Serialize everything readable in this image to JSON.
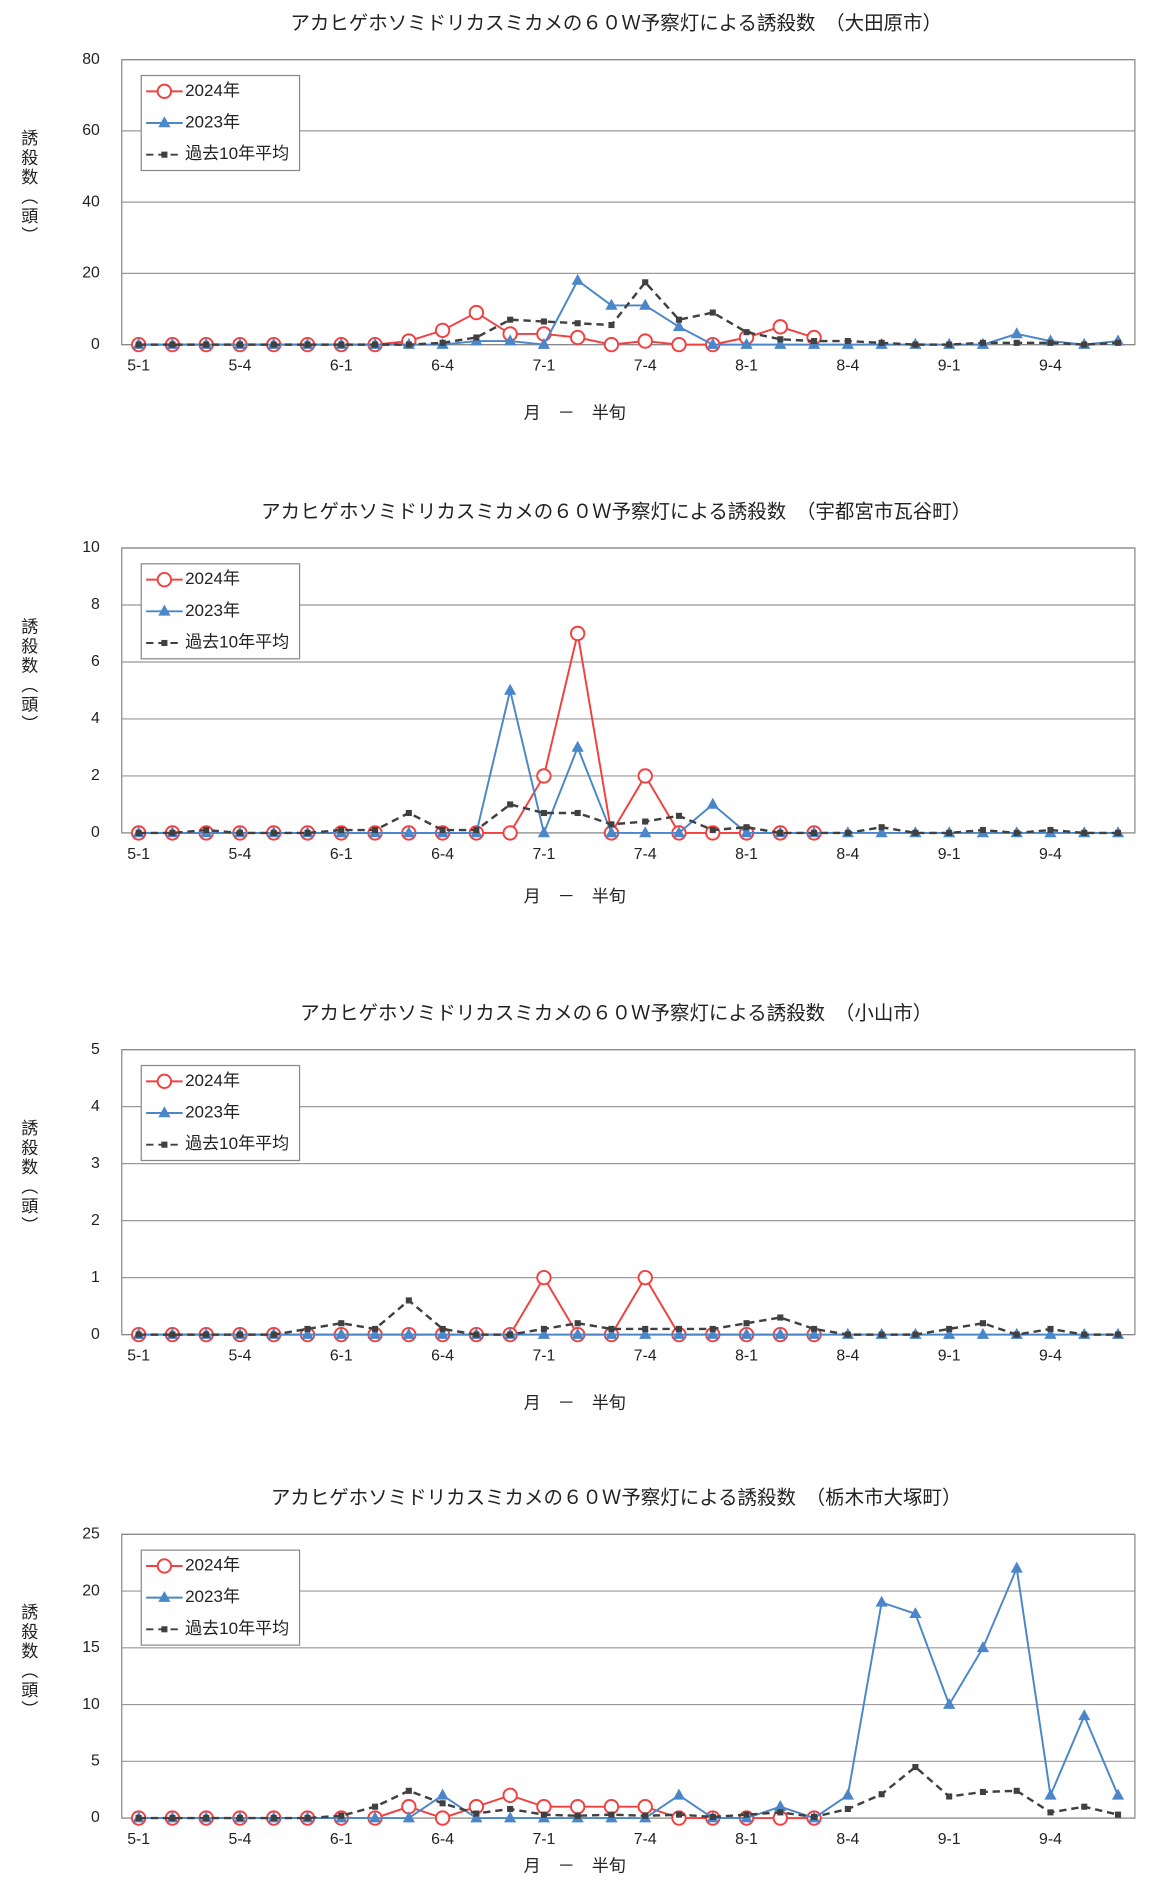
{
  "chart_data": [
    {
      "type": "line",
      "title": "アカヒゲホソミドリカスミカメの６０Ｗ予察灯による誘殺数　（大田原市）",
      "x_label": "月　－　半旬",
      "y_label": "誘殺数（頭）",
      "categories": [
        "5-1",
        null,
        null,
        "5-4",
        null,
        null,
        "6-1",
        null,
        null,
        "6-4",
        null,
        null,
        "7-1",
        null,
        null,
        "7-4",
        null,
        null,
        "8-1",
        null,
        null,
        "8-4",
        null,
        null,
        "9-1",
        null,
        null,
        "9-4",
        null,
        null
      ],
      "series": [
        {
          "name": "2024年",
          "color": "#f04040",
          "marker": "circle",
          "linestyle": "solid",
          "values": [
            0,
            0,
            0,
            0,
            0,
            0,
            0,
            0,
            1,
            4,
            9,
            3,
            3,
            2,
            0,
            1,
            0,
            0,
            2,
            5,
            2,
            null,
            null,
            null,
            null,
            null,
            null,
            null,
            null,
            null
          ]
        },
        {
          "name": "2023年",
          "color": "#4a86c8",
          "marker": "triangle",
          "linestyle": "solid",
          "values": [
            0,
            0,
            0,
            0,
            0,
            0,
            0,
            0,
            0,
            0,
            1,
            1,
            0,
            18,
            11,
            11,
            5,
            0,
            0,
            0,
            0,
            0,
            0,
            0,
            0,
            0,
            3,
            1,
            0,
            1
          ]
        },
        {
          "name": "過去10年平均",
          "color": "#404040",
          "marker": "square",
          "linestyle": "dashed",
          "values": [
            0,
            0,
            0,
            0,
            0,
            0,
            0,
            0,
            0,
            0.5,
            2,
            7,
            6.5,
            6,
            5.5,
            17.5,
            7,
            9,
            3.5,
            1.5,
            1,
            1,
            0.5,
            0,
            0,
            0.5,
            0.5,
            0.5,
            0,
            0.5
          ]
        }
      ],
      "ylim": [
        0,
        80
      ],
      "yticks": [
        0,
        20,
        40,
        60,
        80
      ],
      "grid": true,
      "legend": "upper left"
    },
    {
      "type": "line",
      "title": "アカヒゲホソミドリカスミカメの６０Ｗ予察灯による誘殺数　（宇都宮市瓦谷町）",
      "x_label": "月　－　半旬",
      "y_label": "誘殺数（頭）",
      "categories": [
        "5-1",
        null,
        null,
        "5-4",
        null,
        null,
        "6-1",
        null,
        null,
        "6-4",
        null,
        null,
        "7-1",
        null,
        null,
        "7-4",
        null,
        null,
        "8-1",
        null,
        null,
        "8-4",
        null,
        null,
        "9-1",
        null,
        null,
        "9-4",
        null,
        null
      ],
      "series": [
        {
          "name": "2024年",
          "color": "#f04040",
          "marker": "circle",
          "linestyle": "solid",
          "values": [
            0,
            0,
            0,
            0,
            0,
            0,
            0,
            0,
            0,
            0,
            0,
            0,
            2,
            7,
            0,
            2,
            0,
            0,
            0,
            0,
            0,
            null,
            null,
            null,
            null,
            null,
            null,
            null,
            null,
            null
          ]
        },
        {
          "name": "2023年",
          "color": "#4a86c8",
          "marker": "triangle",
          "linestyle": "solid",
          "values": [
            0,
            0,
            0,
            0,
            0,
            0,
            0,
            0,
            0,
            0,
            0,
            5,
            0,
            3,
            0,
            0,
            0,
            1,
            0,
            0,
            0,
            0,
            0,
            0,
            0,
            0,
            0,
            0,
            0,
            0
          ]
        },
        {
          "name": "過去10年平均",
          "color": "#404040",
          "marker": "square",
          "linestyle": "dashed",
          "values": [
            0,
            0,
            0.1,
            0,
            0,
            0,
            0.1,
            0.1,
            0.7,
            0.1,
            0.1,
            1,
            0.7,
            0.7,
            0.3,
            0.4,
            0.6,
            0.1,
            0.2,
            0,
            0,
            0,
            0.2,
            0,
            0,
            0.1,
            0,
            0.1,
            0,
            0
          ]
        }
      ],
      "ylim": [
        0,
        10
      ],
      "yticks": [
        0,
        2,
        4,
        6,
        8,
        10
      ],
      "grid": true,
      "legend": "upper left"
    },
    {
      "type": "line",
      "title": "アカヒゲホソミドリカスミカメの６０Ｗ予察灯による誘殺数　（小山市）",
      "x_label": "月　－　半旬",
      "y_label": "誘殺数（頭）",
      "categories": [
        "5-1",
        null,
        null,
        "5-4",
        null,
        null,
        "6-1",
        null,
        null,
        "6-4",
        null,
        null,
        "7-1",
        null,
        null,
        "7-4",
        null,
        null,
        "8-1",
        null,
        null,
        "8-4",
        null,
        null,
        "9-1",
        null,
        null,
        "9-4",
        null,
        null
      ],
      "series": [
        {
          "name": "2024年",
          "color": "#f04040",
          "marker": "circle",
          "linestyle": "solid",
          "values": [
            0,
            0,
            0,
            0,
            0,
            0,
            0,
            0,
            0,
            0,
            0,
            0,
            1,
            0,
            0,
            1,
            0,
            0,
            0,
            0,
            0,
            null,
            null,
            null,
            null,
            null,
            null,
            null,
            null,
            null
          ]
        },
        {
          "name": "2023年",
          "color": "#4a86c8",
          "marker": "triangle",
          "linestyle": "solid",
          "values": [
            0,
            0,
            0,
            0,
            0,
            0,
            0,
            0,
            0,
            0,
            0,
            0,
            0,
            0,
            0,
            0,
            0,
            0,
            0,
            0,
            0,
            0,
            0,
            0,
            0,
            0,
            0,
            0,
            0,
            0
          ]
        },
        {
          "name": "過去10年平均",
          "color": "#404040",
          "marker": "square",
          "linestyle": "dashed",
          "values": [
            0,
            0,
            0,
            0,
            0,
            0.1,
            0.2,
            0.1,
            0.6,
            0.1,
            0,
            0,
            0.1,
            0.2,
            0.1,
            0.1,
            0.1,
            0.1,
            0.2,
            0.3,
            0.1,
            0,
            0,
            0,
            0.1,
            0.2,
            0,
            0.1,
            0,
            0
          ]
        }
      ],
      "ylim": [
        0,
        5
      ],
      "yticks": [
        0,
        1,
        2,
        3,
        4,
        5
      ],
      "grid": true,
      "legend": "upper left"
    },
    {
      "type": "line",
      "title": "アカヒゲホソミドリカスミカメの６０Ｗ予察灯による誘殺数　（栃木市大塚町）",
      "x_label": "月　－　半旬",
      "y_label": "誘殺数（頭）",
      "categories": [
        "5-1",
        null,
        null,
        "5-4",
        null,
        null,
        "6-1",
        null,
        null,
        "6-4",
        null,
        null,
        "7-1",
        null,
        null,
        "7-4",
        null,
        null,
        "8-1",
        null,
        null,
        "8-4",
        null,
        null,
        "9-1",
        null,
        null,
        "9-4",
        null,
        null
      ],
      "series": [
        {
          "name": "2024年",
          "color": "#f04040",
          "marker": "circle",
          "linestyle": "solid",
          "values": [
            0,
            0,
            0,
            0,
            0,
            0,
            0,
            0,
            1,
            0,
            1,
            2,
            1,
            1,
            1,
            1,
            0,
            0,
            0,
            0,
            0,
            null,
            null,
            null,
            null,
            null,
            null,
            null,
            null,
            null
          ]
        },
        {
          "name": "2023年",
          "color": "#4a86c8",
          "marker": "triangle",
          "linestyle": "solid",
          "values": [
            0,
            0,
            0,
            0,
            0,
            0,
            0,
            0,
            0,
            2,
            0,
            0,
            0,
            0,
            0,
            0,
            2,
            0,
            0,
            1,
            0,
            2,
            19,
            18,
            10,
            15,
            22,
            2,
            9,
            2
          ]
        },
        {
          "name": "過去10年平均",
          "color": "#404040",
          "marker": "square",
          "linestyle": "dashed",
          "values": [
            0,
            0,
            0,
            0,
            0,
            0,
            0.2,
            1,
            2.4,
            1.3,
            0.4,
            0.8,
            0.3,
            0.2,
            0.3,
            0.2,
            0.3,
            0.1,
            0.3,
            0.5,
            0.1,
            0.8,
            2.1,
            4.5,
            1.9,
            2.3,
            2.4,
            0.5,
            1,
            0.3
          ]
        }
      ],
      "ylim": [
        0,
        25
      ],
      "yticks": [
        0,
        5,
        10,
        15,
        20,
        25
      ],
      "grid": true,
      "legend": "upper left"
    }
  ]
}
